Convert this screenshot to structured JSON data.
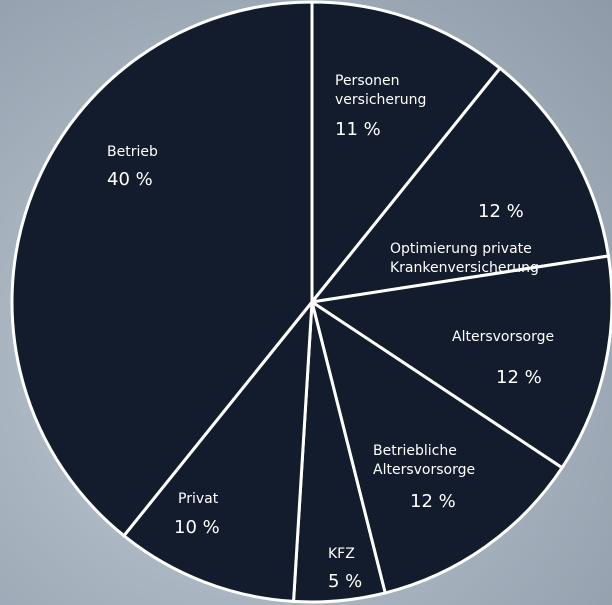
{
  "chart_data": {
    "type": "pie",
    "categories": [
      "Personen\nversicherung",
      "Optimierung private\nKrankenversicherung",
      "Altersvorsorge",
      "Betriebliche\nAltersvorsorge",
      "KFZ",
      "Privat",
      "Betrieb"
    ],
    "values": [
      11,
      12,
      12,
      12,
      5,
      10,
      40
    ],
    "value_labels": [
      "11 %",
      "12 %",
      "12 %",
      "12 %",
      "5 %",
      "10 %",
      "40 %"
    ],
    "color": "#131c2c"
  }
}
